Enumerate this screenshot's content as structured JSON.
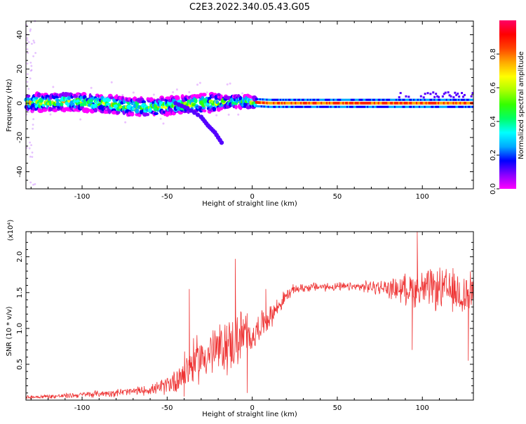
{
  "title": "C2E3.2022.340.05.43.G05",
  "chart_data": [
    {
      "type": "heatmap",
      "xlabel": "Height of straight line (km)",
      "ylabel": "Frequency (Hz)",
      "xlim": [
        -133,
        130
      ],
      "ylim": [
        -50,
        48
      ],
      "xticks": [
        -100,
        -50,
        0,
        50,
        100
      ],
      "yticks": [
        -40,
        -20,
        0,
        20,
        40
      ],
      "colorbar": {
        "label": "Normalized spectral amplitude",
        "range": [
          0,
          1
        ],
        "ticks": [
          "0.0",
          "0.2",
          "0.4",
          "0.6",
          "0.8"
        ],
        "colors": [
          "#ff00ff",
          "#8800ff",
          "#0000ff",
          "#00aaff",
          "#00ffff",
          "#00ff66",
          "#33ff00",
          "#aaff00",
          "#ffff00",
          "#ffaa00",
          "#ff4400",
          "#ff0000",
          "#ff0066"
        ]
      },
      "band": {
        "center_points": [
          [
            -133,
            0.5
          ],
          [
            -120,
            0.5
          ],
          [
            -110,
            1
          ],
          [
            -100,
            0.5
          ],
          [
            -90,
            0
          ],
          [
            -80,
            -1
          ],
          [
            -70,
            -2
          ],
          [
            -60,
            -2.5
          ],
          [
            -50,
            -1.5
          ],
          [
            -40,
            -1
          ],
          [
            -30,
            0
          ],
          [
            -20,
            0.5
          ],
          [
            -10,
            1
          ],
          [
            0,
            0.5
          ],
          [
            10,
            0
          ],
          [
            20,
            0
          ],
          [
            50,
            0
          ],
          [
            90,
            0
          ],
          [
            100,
            0
          ],
          [
            130,
            0
          ]
        ],
        "secondary_trace": [
          [
            -45,
            0
          ],
          [
            -38,
            -3
          ],
          [
            -30,
            -8
          ],
          [
            -26,
            -13
          ],
          [
            -22,
            -17
          ],
          [
            -18,
            -23
          ]
        ]
      }
    },
    {
      "type": "line",
      "xlabel": "Height of straight line (km)",
      "ylabel": "SNR (10 * v/v)",
      "y_multiplier": "(x10⁴)",
      "xlim": [
        -133,
        130
      ],
      "ylim": [
        0,
        2.35
      ],
      "xticks": [
        -100,
        -50,
        0,
        50,
        100
      ],
      "yticks": [
        "0.5",
        "1.0",
        "1.5",
        "2.0"
      ],
      "color": "#ee3333",
      "profile": [
        [
          -133,
          0.04
        ],
        [
          -110,
          0.06
        ],
        [
          -90,
          0.09
        ],
        [
          -70,
          0.12
        ],
        [
          -55,
          0.16
        ],
        [
          -45,
          0.28
        ],
        [
          -38,
          0.45
        ],
        [
          -30,
          0.6
        ],
        [
          -20,
          0.7
        ],
        [
          -10,
          0.82
        ],
        [
          -5,
          0.9
        ],
        [
          0,
          0.88
        ],
        [
          5,
          1.05
        ],
        [
          10,
          1.15
        ],
        [
          15,
          1.3
        ],
        [
          20,
          1.45
        ],
        [
          25,
          1.55
        ],
        [
          35,
          1.58
        ],
        [
          50,
          1.58
        ],
        [
          70,
          1.58
        ],
        [
          85,
          1.55
        ],
        [
          95,
          1.55
        ],
        [
          110,
          1.55
        ],
        [
          130,
          1.45
        ]
      ],
      "noise_amplitude": [
        [
          -133,
          0.03
        ],
        [
          -100,
          0.05
        ],
        [
          -60,
          0.08
        ],
        [
          -50,
          0.15
        ],
        [
          -40,
          0.35
        ],
        [
          -20,
          0.45
        ],
        [
          -5,
          0.5
        ],
        [
          0,
          0.25
        ],
        [
          10,
          0.2
        ],
        [
          25,
          0.08
        ],
        [
          60,
          0.07
        ],
        [
          80,
          0.15
        ],
        [
          95,
          0.3
        ],
        [
          110,
          0.35
        ],
        [
          130,
          0.4
        ]
      ],
      "spikes": [
        [
          -37,
          1.55
        ],
        [
          -10,
          1.97
        ],
        [
          8,
          1.55
        ],
        [
          97,
          2.35
        ],
        [
          94,
          0.7
        ],
        [
          127,
          0.55
        ],
        [
          -40,
          0.05
        ],
        [
          -3,
          0.1
        ]
      ]
    }
  ]
}
